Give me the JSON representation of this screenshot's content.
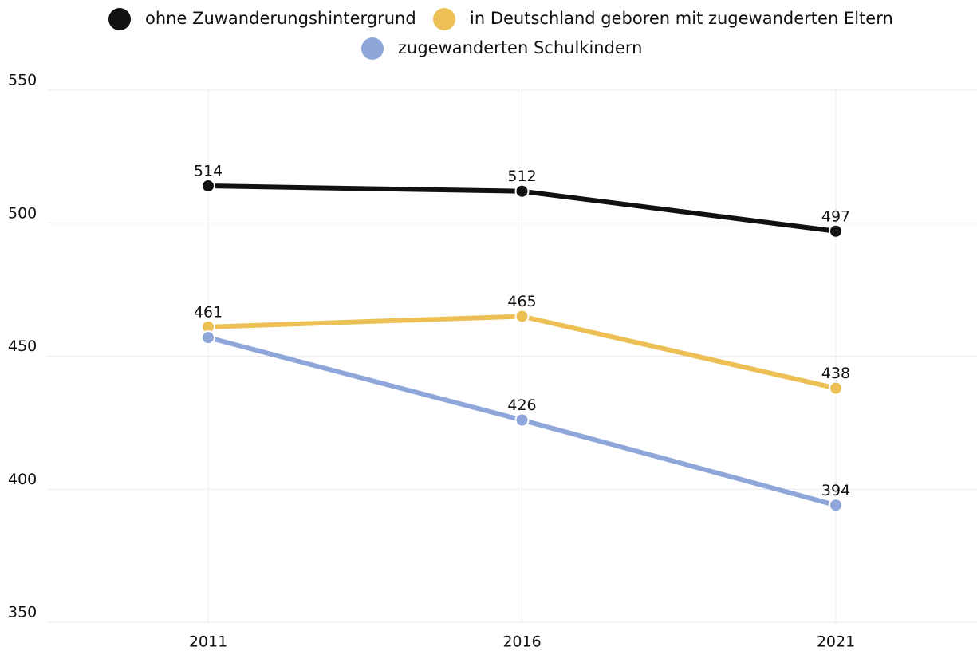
{
  "chart_data": {
    "type": "line",
    "categories": [
      "2011",
      "2016",
      "2021"
    ],
    "series": [
      {
        "name": "ohne Zuwanderungshintergrund",
        "color": "#111111",
        "values": [
          514,
          512,
          497
        ]
      },
      {
        "name": "in Deutschland geboren mit zugewanderten Eltern",
        "color": "#ecc055",
        "values": [
          461,
          465,
          438
        ]
      },
      {
        "name": "zugewanderten Schulkindern",
        "color": "#8ea6d9",
        "values": [
          457,
          426,
          394
        ],
        "value_labels": [
          null,
          "426",
          "394"
        ]
      }
    ],
    "ylim": [
      350,
      550
    ],
    "yticks": [
      350,
      400,
      450,
      500,
      550
    ],
    "grid": true
  }
}
